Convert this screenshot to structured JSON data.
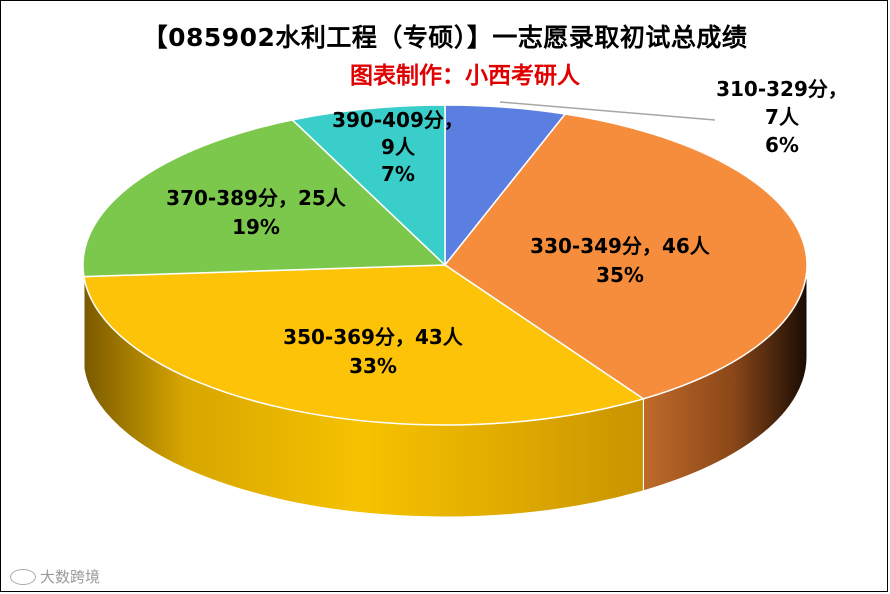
{
  "header": {
    "title": "【085902水利工程（专硕）】一志愿录取初试总成绩",
    "subtitle": "图表制作：小西考研人"
  },
  "watermark": {
    "text": "大数跨境",
    "icon": "brand-logo-icon"
  },
  "chart_data": {
    "type": "pie",
    "title": "【085902水利工程（专硕）】一志愿录取初试总成绩",
    "subtitle": "图表制作：小西考研人",
    "slices": [
      {
        "range": "310-329分",
        "count": 7,
        "pct": "6%",
        "value": 7,
        "color": "#5b7fe0"
      },
      {
        "range": "330-349分",
        "count": 46,
        "pct": "35%",
        "value": 46,
        "color": "#f68d3c"
      },
      {
        "range": "350-369分",
        "count": 43,
        "pct": "33%",
        "value": 43,
        "color": "#fdc308"
      },
      {
        "range": "370-389分",
        "count": 25,
        "pct": "19%",
        "value": 25,
        "color": "#7cc84c"
      },
      {
        "range": "390-409分",
        "count": 9,
        "pct": "7%",
        "value": 9,
        "color": "#39cec9"
      }
    ],
    "labels": [
      {
        "line1": "310-329分，",
        "line2": "7人",
        "line3": "6%"
      },
      {
        "line1": "330-349分，46人",
        "line2": "35%"
      },
      {
        "line1": "350-369分，43人",
        "line2": "33%"
      },
      {
        "line1": "370-389分，25人",
        "line2": "19%"
      },
      {
        "line1": "390-409分，",
        "line2": "9人",
        "line3": "7%"
      }
    ]
  }
}
